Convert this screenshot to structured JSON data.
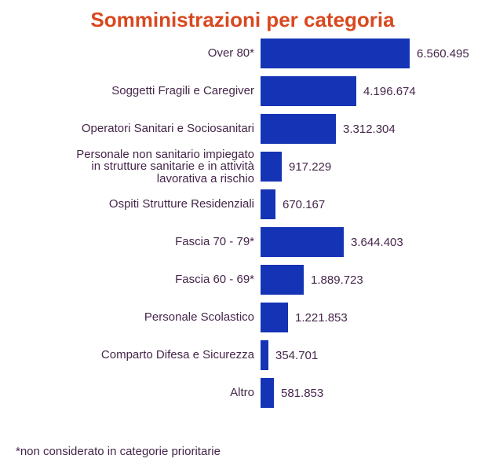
{
  "chart_data": {
    "type": "bar",
    "orientation": "horizontal",
    "title": "Somministrazioni per categoria",
    "footnote": "*non considerato in categorie prioritarie",
    "categories": [
      "Over 80*",
      "Soggetti Fragili e Caregiver",
      "Operatori Sanitari e Sociosanitari",
      "Personale non sanitario impiegato\nin strutture sanitarie e in attività\nlavorativa a rischio",
      "Ospiti Strutture Residenziali",
      "Fascia 70 - 79*",
      "Fascia 60 - 69*",
      "Personale Scolastico",
      "Comparto Difesa e Sicurezza",
      "Altro"
    ],
    "values": [
      6560495,
      4196674,
      3312304,
      917229,
      670167,
      3644403,
      1889723,
      1221853,
      354701,
      581853
    ],
    "value_labels": [
      "6.560.495",
      "4.196.674",
      "3.312.304",
      "917.229",
      "670.167",
      "3.644.403",
      "1.889.723",
      "1.221.853",
      "354.701",
      "581.853"
    ],
    "xlim": [
      0,
      6560495
    ],
    "grid": false,
    "legend": null,
    "colors": {
      "bar": "#1433b5",
      "title": "#d9481f",
      "text": "#45254a",
      "background": "#ffffff"
    }
  }
}
